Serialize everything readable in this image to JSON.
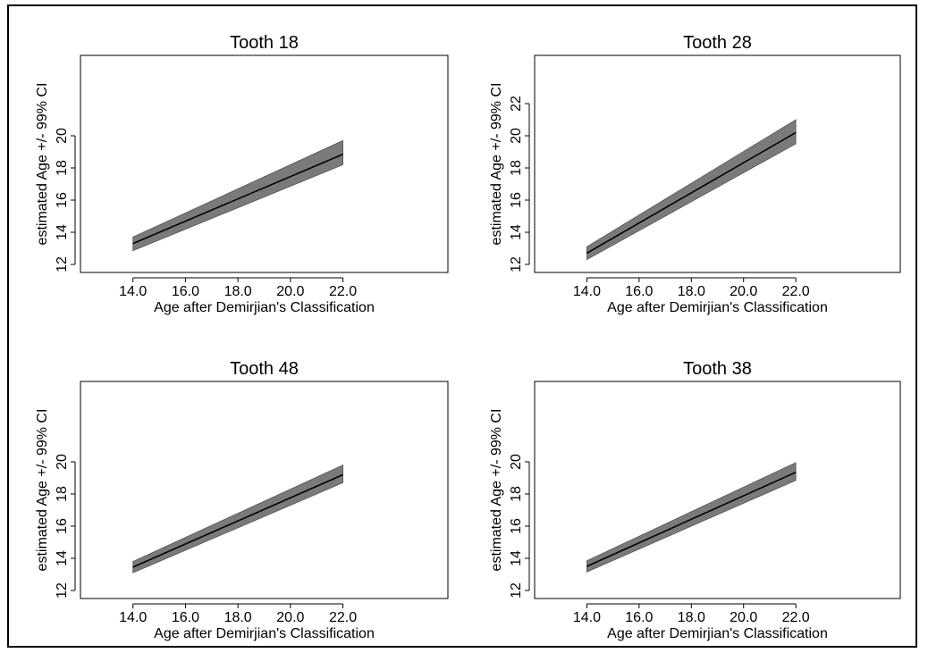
{
  "colors": {
    "band": "#7a7a7a",
    "line": "#000000",
    "frame": "#000000",
    "background": "#ffffff"
  },
  "chart_data": [
    {
      "type": "line",
      "title": "Tooth 18",
      "xlabel": "Age after Demirjian's Classification",
      "ylabel": "estimated Age +/- 99% CI",
      "x_ticks": [
        "14.0",
        "16.0",
        "18.0",
        "20.0",
        "22.0"
      ],
      "y_ticks": [
        "12",
        "14",
        "16",
        "18",
        "20"
      ],
      "xlim": [
        12,
        26
      ],
      "ylim": [
        11.5,
        25
      ],
      "grid": false,
      "series": [
        {
          "x": [
            14,
            22
          ],
          "y": [
            13.3,
            18.85
          ],
          "lower": [
            12.85,
            18.2
          ],
          "upper": [
            13.7,
            19.7
          ]
        }
      ]
    },
    {
      "type": "line",
      "title": "Tooth 28",
      "xlabel": "Age after Demirjian's Classification",
      "ylabel": "estimated Age +/- 99% CI",
      "x_ticks": [
        "14.0",
        "16.0",
        "18.0",
        "20.0",
        "22.0"
      ],
      "y_ticks": [
        "12",
        "14",
        "16",
        "18",
        "20",
        "22"
      ],
      "xlim": [
        12,
        26
      ],
      "ylim": [
        11.5,
        25
      ],
      "grid": false,
      "series": [
        {
          "x": [
            14,
            22
          ],
          "y": [
            12.7,
            20.2
          ],
          "lower": [
            12.3,
            19.5
          ],
          "upper": [
            13.1,
            21.0
          ]
        }
      ]
    },
    {
      "type": "line",
      "title": "Tooth 48",
      "xlabel": "Age after Demirjian's Classification",
      "ylabel": "estimated Age +/- 99% CI",
      "x_ticks": [
        "14.0",
        "16.0",
        "18.0",
        "20.0",
        "22.0"
      ],
      "y_ticks": [
        "12",
        "14",
        "16",
        "18",
        "20"
      ],
      "xlim": [
        12,
        26
      ],
      "ylim": [
        11.5,
        25
      ],
      "grid": false,
      "series": [
        {
          "x": [
            14,
            22
          ],
          "y": [
            13.45,
            19.2
          ],
          "lower": [
            13.1,
            18.7
          ],
          "upper": [
            13.8,
            19.8
          ]
        }
      ]
    },
    {
      "type": "line",
      "title": "Tooth 38",
      "xlabel": "Age after Demirjian's Classification",
      "ylabel": "estimated Age +/- 99% CI",
      "x_ticks": [
        "14.0",
        "16.0",
        "18.0",
        "20.0",
        "22.0"
      ],
      "y_ticks": [
        "12",
        "14",
        "16",
        "18",
        "20"
      ],
      "xlim": [
        12,
        26
      ],
      "ylim": [
        11.5,
        25
      ],
      "grid": false,
      "series": [
        {
          "x": [
            14,
            22
          ],
          "y": [
            13.5,
            19.35
          ],
          "lower": [
            13.15,
            18.85
          ],
          "upper": [
            13.85,
            19.95
          ]
        }
      ]
    }
  ]
}
